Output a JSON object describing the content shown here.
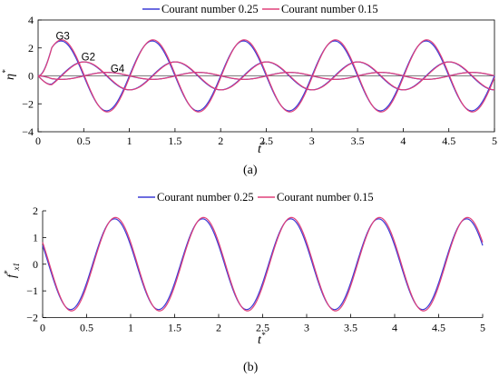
{
  "chart_data": [
    {
      "type": "line",
      "caption": "(a)",
      "xlabel": "t*",
      "ylabel": "η*",
      "xlim": [
        0,
        5
      ],
      "ylim": [
        -4,
        4
      ],
      "xticks": [
        "0",
        "0.5",
        "1",
        "1.5",
        "2",
        "2.5",
        "3",
        "3.5",
        "4",
        "4.5",
        "5"
      ],
      "yticks": [
        "4",
        "2",
        "0",
        "-2",
        "-4"
      ],
      "legend": [
        "Courant number 0.25",
        "Courant number 0.15"
      ],
      "annotations": [
        {
          "text": "G3",
          "x": 0.27,
          "y": 2.6
        },
        {
          "text": "G2",
          "x": 0.55,
          "y": 1.1
        },
        {
          "text": "G4",
          "x": 0.87,
          "y": 0.25
        }
      ],
      "series": [
        {
          "name": "Courant number 0.25",
          "color": "#3b3bd6",
          "gauge": "G3",
          "amplitude": 2.5,
          "period": 1.0,
          "phase": 0.0
        },
        {
          "name": "Courant number 0.25",
          "color": "#3b3bd6",
          "gauge": "G2",
          "amplitude": 1.0,
          "period": 1.0,
          "phase": -0.25
        },
        {
          "name": "Courant number 0.25",
          "color": "#3b3bd6",
          "gauge": "G4",
          "amplitude": 0.25,
          "period": 1.0,
          "phase": -0.5
        },
        {
          "name": "Courant number 0.15",
          "color": "#e0407a",
          "gauge": "G3",
          "amplitude": 2.58,
          "period": 1.0,
          "phase": 0.0
        },
        {
          "name": "Courant number 0.15",
          "color": "#e0407a",
          "gauge": "G2",
          "amplitude": 1.0,
          "period": 1.0,
          "phase": -0.25
        },
        {
          "name": "Courant number 0.15",
          "color": "#e0407a",
          "gauge": "G4",
          "amplitude": 0.25,
          "period": 1.0,
          "phase": -0.5
        }
      ]
    },
    {
      "type": "line",
      "caption": "(b)",
      "xlabel": "t*",
      "ylabel": "f*x1",
      "xlim": [
        0,
        5
      ],
      "ylim": [
        -2,
        2
      ],
      "xticks": [
        "0",
        "0.5",
        "1",
        "1.5",
        "2",
        "2.5",
        "3",
        "3.5",
        "4",
        "4.5",
        "5"
      ],
      "yticks": [
        "2",
        "1",
        "0",
        "-1",
        "-2"
      ],
      "legend": [
        "Courant number 0.25",
        "Courant number 0.15"
      ],
      "series": [
        {
          "name": "Courant number 0.25",
          "color": "#3b3bd6",
          "amplitude": 1.7,
          "start": 0.7
        },
        {
          "name": "Courant number 0.15",
          "color": "#e0407a",
          "amplitude": 1.75,
          "start": 0.7
        }
      ]
    }
  ]
}
